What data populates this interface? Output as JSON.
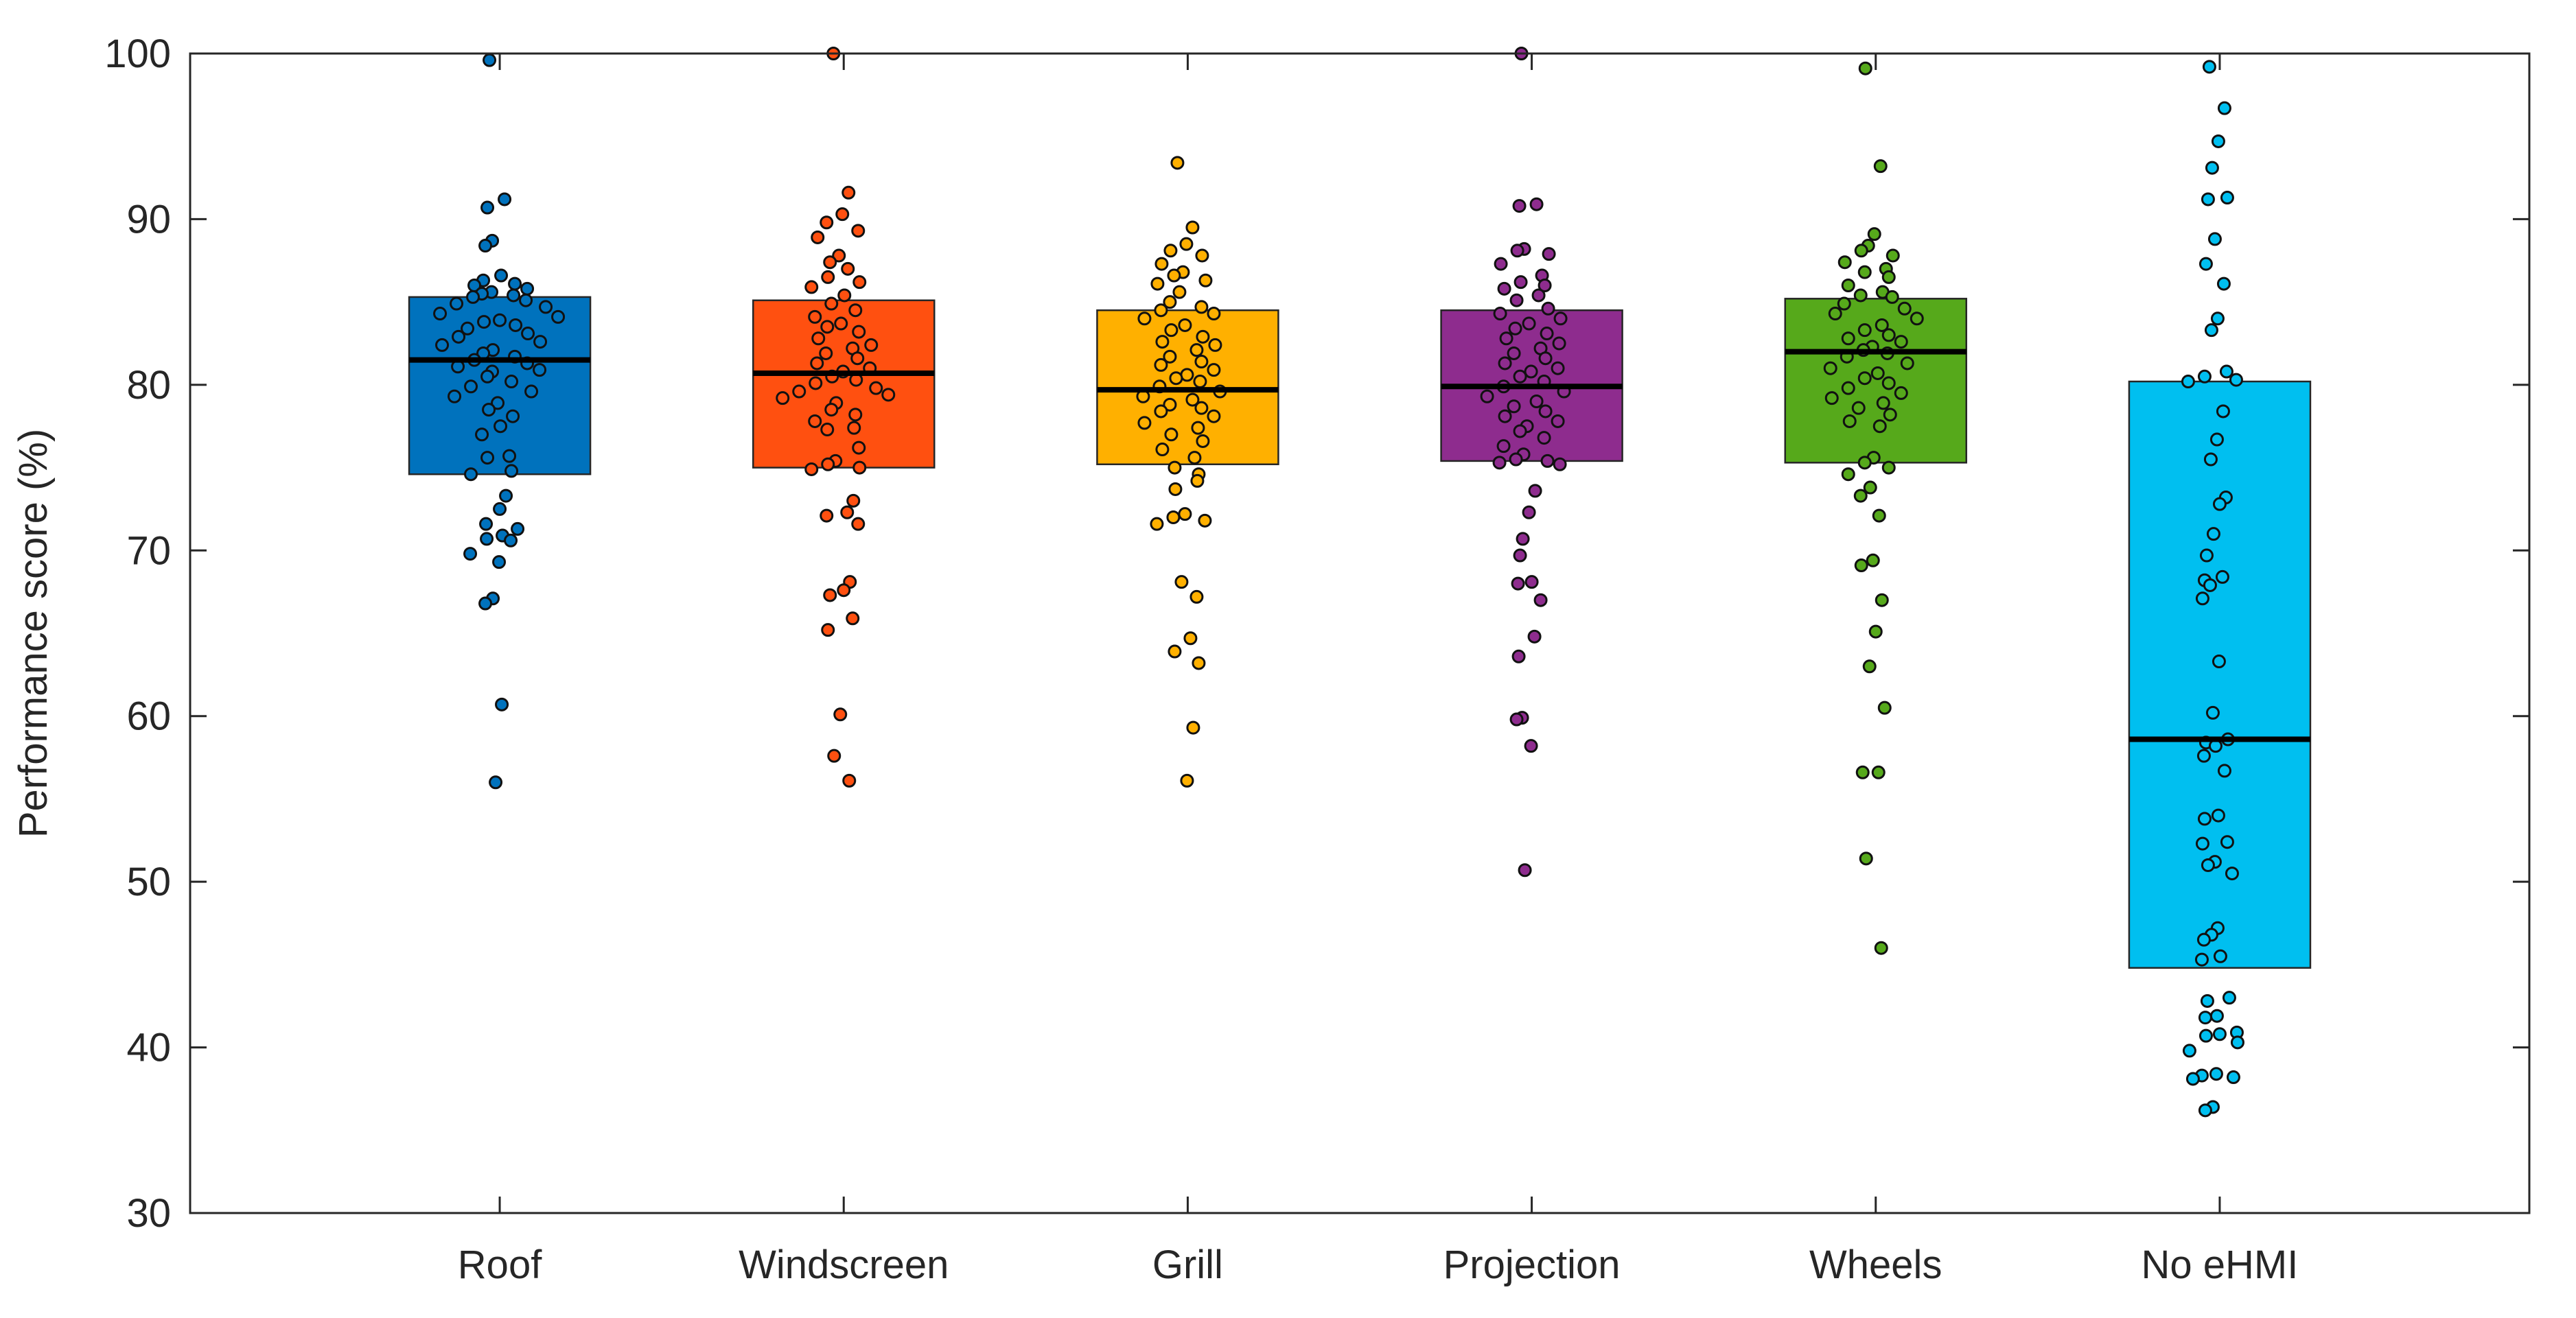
{
  "chart_data": {
    "type": "boxplot",
    "title": "",
    "xlabel": "",
    "ylabel": "Performance score (%)",
    "ylim": [
      30,
      100
    ],
    "yticks": [
      30,
      40,
      50,
      60,
      70,
      80,
      90,
      100
    ],
    "grid": false,
    "categories": [
      "Roof",
      "Windscreen",
      "Grill",
      "Projection",
      "Wheels",
      "No eHMI"
    ],
    "colors": [
      "#0072BD",
      "#FF5010",
      "#FFB000",
      "#8E2C8E",
      "#56A91B",
      "#00BFF0"
    ],
    "boxes": [
      {
        "q1": 74.6,
        "median": 81.5,
        "q3": 85.3
      },
      {
        "q1": 75.0,
        "median": 80.7,
        "q3": 85.1
      },
      {
        "q1": 75.2,
        "median": 79.7,
        "q3": 84.5
      },
      {
        "q1": 75.4,
        "median": 79.9,
        "q3": 84.5
      },
      {
        "q1": 75.3,
        "median": 82.0,
        "q3": 85.2
      },
      {
        "q1": 44.8,
        "median": 58.6,
        "q3": 80.2
      }
    ],
    "series": [
      {
        "name": "Roof",
        "values": [
          99.6,
          91.2,
          90.7,
          88.7,
          88.4,
          86.6,
          86.3,
          86.1,
          86.0,
          85.8,
          85.6,
          85.5,
          85.4,
          85.3,
          85.1,
          84.9,
          84.7,
          84.3,
          84.1,
          83.9,
          83.8,
          83.6,
          83.4,
          83.1,
          82.9,
          82.6,
          82.4,
          82.1,
          81.9,
          81.7,
          81.5,
          81.3,
          81.1,
          80.9,
          80.8,
          80.5,
          80.2,
          79.9,
          79.6,
          79.3,
          78.9,
          78.5,
          78.1,
          77.5,
          77.0,
          75.7,
          75.6,
          74.8,
          74.6,
          73.3,
          72.5,
          71.6,
          71.3,
          70.9,
          70.7,
          70.6,
          69.8,
          69.3,
          67.1,
          66.8,
          60.7,
          56.0
        ]
      },
      {
        "name": "Windscreen",
        "values": [
          100.0,
          91.6,
          90.3,
          89.8,
          89.3,
          88.9,
          87.8,
          87.4,
          87.0,
          86.5,
          86.2,
          85.9,
          85.4,
          84.9,
          84.5,
          84.1,
          83.7,
          83.5,
          83.2,
          82.8,
          82.4,
          82.2,
          81.9,
          81.6,
          81.3,
          81.0,
          80.8,
          80.5,
          80.3,
          80.1,
          79.8,
          79.6,
          79.4,
          79.2,
          78.9,
          78.5,
          78.2,
          77.8,
          77.4,
          77.3,
          76.2,
          75.4,
          75.2,
          75.0,
          74.9,
          73.0,
          72.3,
          72.1,
          71.6,
          68.1,
          67.6,
          67.3,
          65.9,
          65.2,
          60.1,
          57.6,
          56.1
        ]
      },
      {
        "name": "Grill",
        "values": [
          93.4,
          89.5,
          88.5,
          88.1,
          87.8,
          87.3,
          86.8,
          86.6,
          86.3,
          86.1,
          85.6,
          85.0,
          84.7,
          84.5,
          84.3,
          84.0,
          83.6,
          83.3,
          82.9,
          82.6,
          82.4,
          82.1,
          81.7,
          81.4,
          81.2,
          80.9,
          80.6,
          80.4,
          80.2,
          79.9,
          79.6,
          79.3,
          79.1,
          78.8,
          78.6,
          78.4,
          78.1,
          77.7,
          77.4,
          77.0,
          76.6,
          76.1,
          75.6,
          75.0,
          74.6,
          74.2,
          73.7,
          72.2,
          72.0,
          71.8,
          71.6,
          68.1,
          67.2,
          64.7,
          63.9,
          63.2,
          59.3,
          56.1
        ]
      },
      {
        "name": "Projection",
        "values": [
          100.0,
          90.9,
          90.8,
          88.2,
          88.1,
          87.9,
          87.3,
          86.6,
          86.2,
          86.0,
          85.8,
          85.4,
          85.1,
          84.6,
          84.3,
          84.0,
          83.7,
          83.4,
          83.1,
          82.8,
          82.5,
          82.2,
          81.9,
          81.6,
          81.3,
          81.0,
          80.8,
          80.5,
          80.2,
          79.9,
          79.6,
          79.3,
          79.0,
          78.7,
          78.4,
          78.1,
          77.8,
          77.5,
          77.2,
          76.8,
          76.3,
          75.8,
          75.5,
          75.4,
          75.3,
          75.2,
          73.6,
          72.3,
          70.7,
          69.7,
          68.1,
          68.0,
          67.0,
          64.8,
          63.6,
          59.9,
          59.8,
          58.2,
          50.7
        ]
      },
      {
        "name": "Wheels",
        "values": [
          99.1,
          93.2,
          89.1,
          88.4,
          88.1,
          87.8,
          87.4,
          87.0,
          86.8,
          86.5,
          86.0,
          85.6,
          85.4,
          85.3,
          84.9,
          84.6,
          84.3,
          84.0,
          83.6,
          83.3,
          83.0,
          82.8,
          82.6,
          82.3,
          82.1,
          81.9,
          81.7,
          81.3,
          81.0,
          80.7,
          80.4,
          80.1,
          79.8,
          79.5,
          79.2,
          78.9,
          78.6,
          78.2,
          77.8,
          77.5,
          75.6,
          75.3,
          75.0,
          74.6,
          73.8,
          73.3,
          72.1,
          69.4,
          69.1,
          67.0,
          65.1,
          63.0,
          60.5,
          56.6,
          56.6,
          51.4,
          46.0
        ]
      },
      {
        "name": "No eHMI",
        "values": [
          99.2,
          96.7,
          94.7,
          93.1,
          91.3,
          91.2,
          88.8,
          87.3,
          86.1,
          84.0,
          83.3,
          80.8,
          80.5,
          80.3,
          80.2,
          78.4,
          76.7,
          75.5,
          73.2,
          72.8,
          71.0,
          69.7,
          68.4,
          68.2,
          67.9,
          67.1,
          63.3,
          60.2,
          58.6,
          58.4,
          58.2,
          57.6,
          56.7,
          54.0,
          53.8,
          52.4,
          52.3,
          51.2,
          51.0,
          50.5,
          47.2,
          46.8,
          46.5,
          45.5,
          45.3,
          43.0,
          42.8,
          41.9,
          41.8,
          40.9,
          40.8,
          40.7,
          40.3,
          39.8,
          38.4,
          38.3,
          38.2,
          38.1,
          36.4,
          36.2
        ]
      }
    ]
  }
}
